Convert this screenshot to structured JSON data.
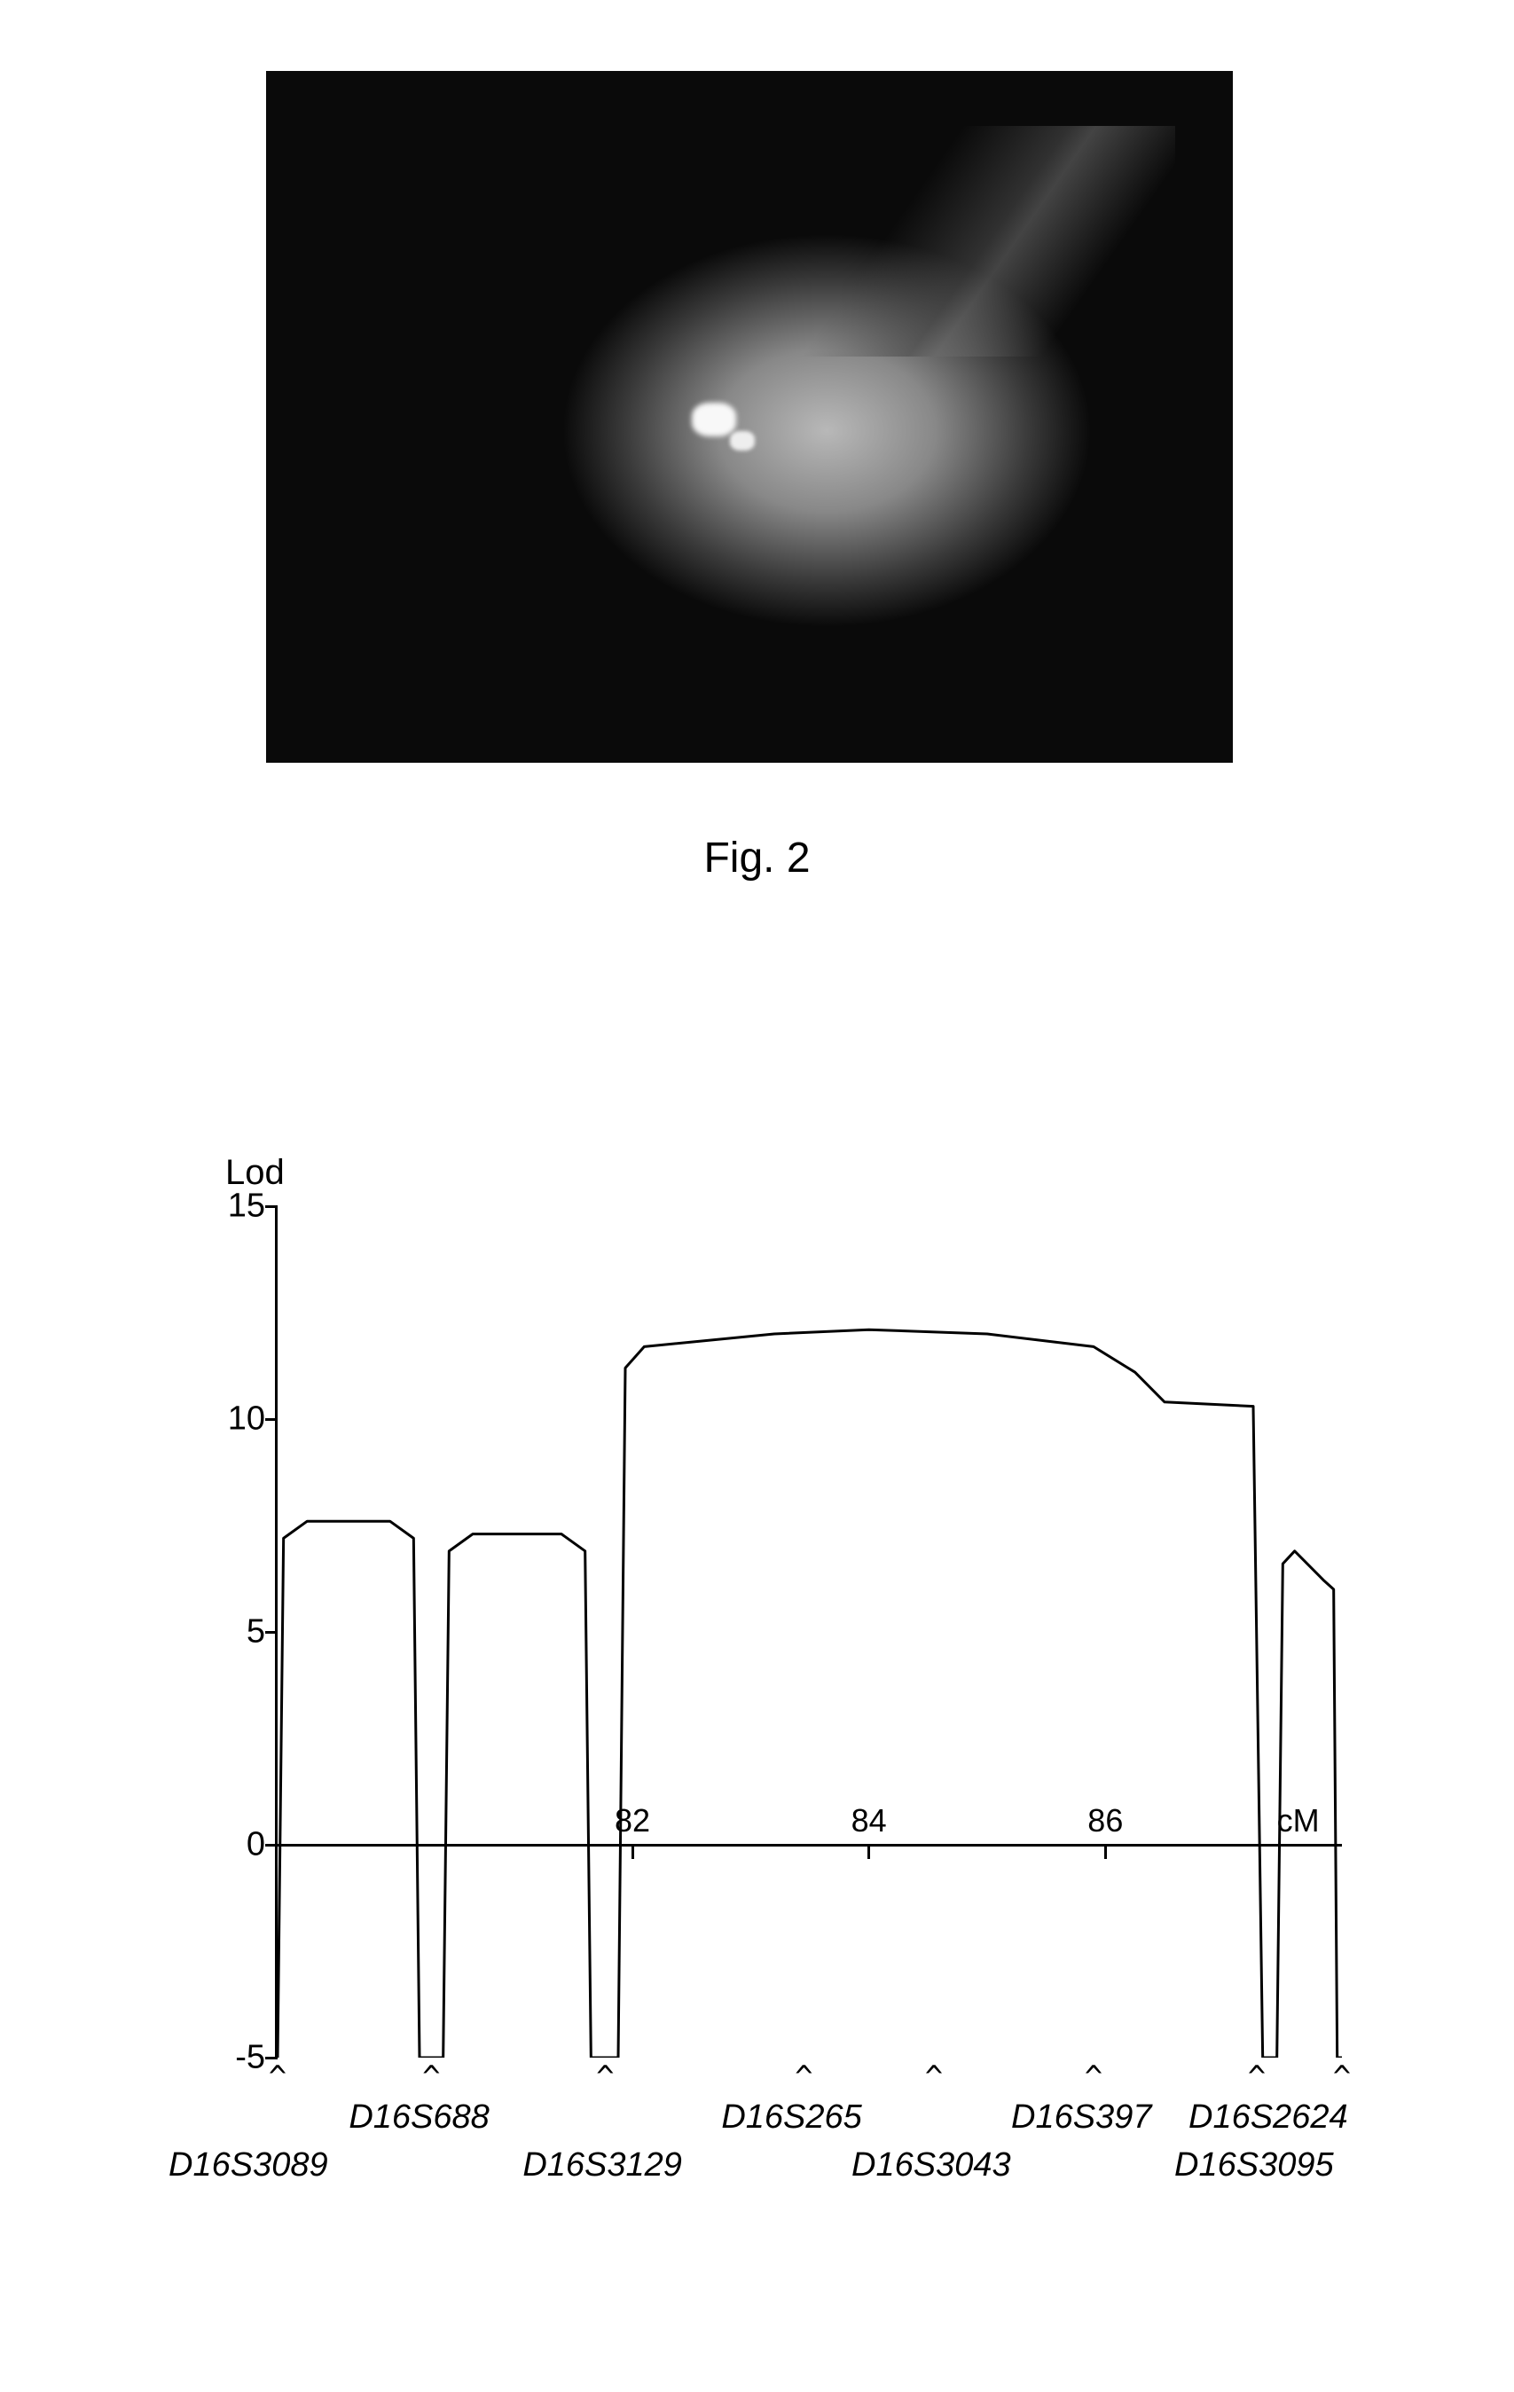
{
  "figure_photo": {
    "caption": "Fig.    2",
    "caption_fontsize": 48,
    "background_color": "#0a0a0a",
    "highlight_color": "#f8f8f8"
  },
  "lod_chart": {
    "type": "line",
    "y_axis_title": "Lod",
    "y_axis_title_fontsize": 40,
    "ylim": [
      -5,
      15
    ],
    "xlim_cm": [
      79,
      88
    ],
    "yticks": [
      -5,
      0,
      5,
      10,
      15
    ],
    "xticks_cm": [
      82,
      84,
      86
    ],
    "xticks_labels": [
      "82",
      "84",
      "86"
    ],
    "x_unit_label": "cM",
    "line_color": "#000000",
    "line_width": 3,
    "background_color": "#ffffff",
    "axis_color": "#000000",
    "label_color": "#000000",
    "label_fontsize": 38,
    "tick_fontsize": 38,
    "marker_font_style": "italic",
    "series_points_cm_lod": [
      [
        79.0,
        -5.0
      ],
      [
        79.05,
        7.2
      ],
      [
        79.25,
        7.6
      ],
      [
        79.95,
        7.6
      ],
      [
        80.15,
        7.2
      ],
      [
        80.2,
        -5.0
      ],
      [
        80.4,
        -5.0
      ],
      [
        80.45,
        6.9
      ],
      [
        80.65,
        7.3
      ],
      [
        81.4,
        7.3
      ],
      [
        81.6,
        6.9
      ],
      [
        81.65,
        -5.0
      ],
      [
        81.88,
        -5.0
      ],
      [
        81.94,
        11.2
      ],
      [
        82.1,
        11.7
      ],
      [
        83.2,
        12.0
      ],
      [
        84.0,
        12.1
      ],
      [
        85.0,
        12.0
      ],
      [
        85.9,
        11.7
      ],
      [
        86.25,
        11.1
      ],
      [
        86.5,
        10.4
      ],
      [
        87.25,
        10.3
      ],
      [
        87.33,
        -5.0
      ],
      [
        87.45,
        -5.0
      ],
      [
        87.5,
        6.6
      ],
      [
        87.6,
        6.9
      ],
      [
        87.85,
        6.2
      ],
      [
        87.93,
        6.0
      ],
      [
        87.96,
        -5.0
      ],
      [
        88.0,
        -5.0
      ]
    ],
    "marker_positions": [
      {
        "name": "D16S3089",
        "cm": 79.0,
        "row": "lower"
      },
      {
        "name": "D16S688",
        "cm": 80.3,
        "row": "upper"
      },
      {
        "name": "D16S3129",
        "cm": 81.77,
        "row": "lower"
      },
      {
        "name": "D16S265",
        "cm": 83.45,
        "row": "upper"
      },
      {
        "name": "D16S3043",
        "cm": 84.55,
        "row": "lower"
      },
      {
        "name": "D16S397",
        "cm": 85.9,
        "row": "upper"
      },
      {
        "name": "D16S3095",
        "cm": 87.28,
        "row": "lower"
      },
      {
        "name": "D16S2624",
        "cm": 88.0,
        "row": "upper"
      }
    ]
  }
}
